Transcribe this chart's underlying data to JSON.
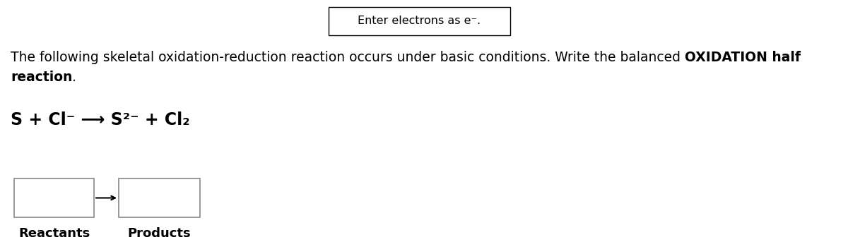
{
  "background_color": "#ffffff",
  "top_box_text": "Enter electrons as e⁻.",
  "desc_normal1": "The following skeletal oxidation-reduction reaction occurs under basic conditions. Write the balanced ",
  "desc_bold1": "OXIDATION half",
  "desc_bold2": "reaction",
  "desc_normal2": ".",
  "eq_text": "S + Cl⁻ ⟶ S²⁻ + Cl₂",
  "reactants_label": "Reactants",
  "products_label": "Products",
  "font_size_topbox": 11.5,
  "font_size_desc": 13.5,
  "font_size_eq": 17,
  "font_size_label": 13
}
